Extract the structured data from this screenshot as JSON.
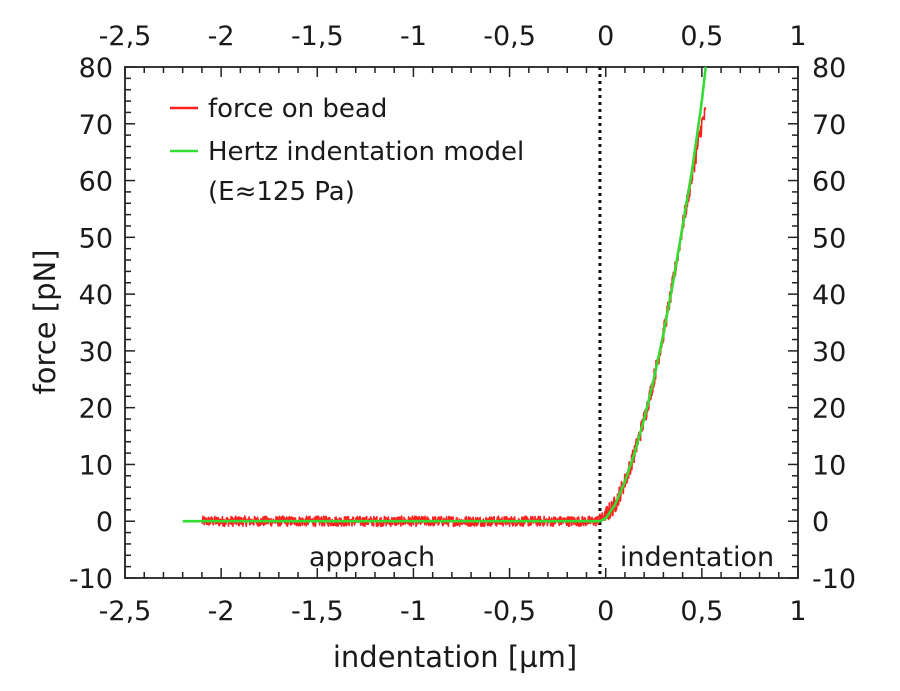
{
  "chart_data": {
    "type": "line",
    "xlabel": "indentation [µm]",
    "ylabel": "force [pN]",
    "xlim": [
      -2.5,
      1
    ],
    "ylim": [
      -10,
      80
    ],
    "x_ticks": [
      "-2,5",
      "-2",
      "-1,5",
      "-1",
      "-0,5",
      "0",
      "0,5",
      "1"
    ],
    "x_tick_values": [
      -2.5,
      -2,
      -1.5,
      -1,
      -0.5,
      0,
      0.5,
      1
    ],
    "y_ticks": [
      "-10",
      "0",
      "10",
      "20",
      "30",
      "40",
      "50",
      "60",
      "70",
      "80"
    ],
    "y_tick_values": [
      -10,
      0,
      10,
      20,
      30,
      40,
      50,
      60,
      70,
      80
    ],
    "grid": false,
    "legend_position": "top-left",
    "contact_point_x": -0.03,
    "series": [
      {
        "name": "force on bead",
        "color": "#ff2020",
        "style": "noisy",
        "x": [
          -2.1,
          -1.5,
          -1.0,
          -0.5,
          -0.05,
          0.0,
          0.05,
          0.1,
          0.15,
          0.2,
          0.25,
          0.3,
          0.35,
          0.4,
          0.45,
          0.5,
          0.52
        ],
        "y": [
          0,
          0,
          0,
          0,
          0,
          1,
          3,
          7,
          12,
          18,
          25,
          33,
          42,
          52,
          61,
          70,
          72
        ]
      },
      {
        "name": "Hertz indentation model",
        "color": "#33dd33",
        "style": "smooth",
        "x": [
          -2.2,
          -1.5,
          -1.0,
          -0.5,
          -0.03,
          0.0,
          0.05,
          0.1,
          0.15,
          0.2,
          0.25,
          0.3,
          0.35,
          0.4,
          0.45,
          0.5,
          0.52
        ],
        "y": [
          0,
          0,
          0,
          0,
          0,
          0.5,
          3,
          7,
          12,
          18,
          25,
          33,
          42,
          52,
          62,
          74,
          80
        ]
      }
    ],
    "annotations": [
      {
        "text": "(E≈125 Pa)"
      },
      {
        "text": "approach"
      },
      {
        "text": "indentation"
      }
    ]
  }
}
